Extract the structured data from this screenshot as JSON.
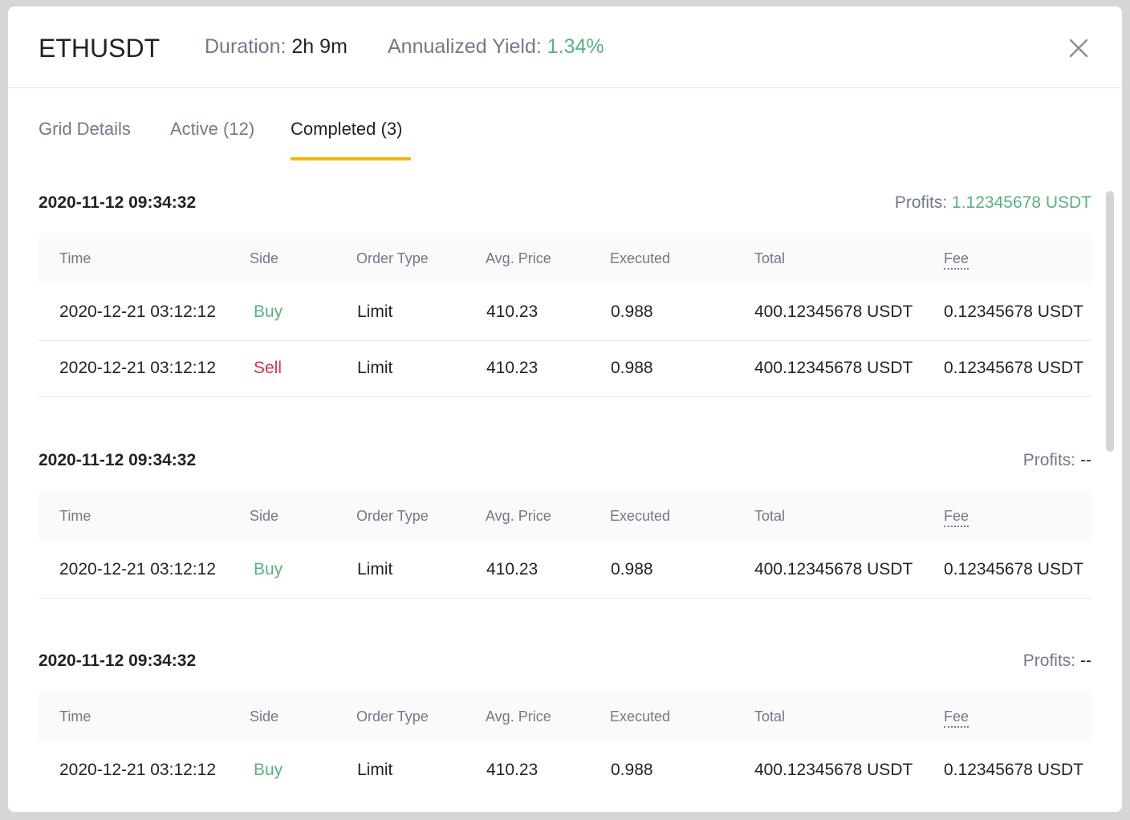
{
  "header": {
    "symbol": "ETHUSDT",
    "duration_label": "Duration:",
    "duration_value": "2h 9m",
    "yield_label": "Annualized Yield:",
    "yield_value": "1.34%"
  },
  "tabs": [
    {
      "label": "Grid Details"
    },
    {
      "label": "Active (12)"
    },
    {
      "label": "Completed (3)"
    }
  ],
  "columns": [
    "Time",
    "Side",
    "Order Type",
    "Avg. Price",
    "Executed",
    "Total",
    "Fee"
  ],
  "groups": [
    {
      "date": "2020-11-12 09:34:32",
      "profits_label": "Profits:",
      "profits_value": "1.12345678 USDT",
      "rows": [
        {
          "time": "2020-12-21 03:12:12",
          "side": "Buy",
          "order_type": "Limit",
          "avg_price": "410.23",
          "executed": "0.988",
          "total": "400.12345678 USDT",
          "fee": "0.12345678 USDT"
        },
        {
          "time": "2020-12-21 03:12:12",
          "side": "Sell",
          "order_type": "Limit",
          "avg_price": "410.23",
          "executed": "0.988",
          "total": "400.12345678 USDT",
          "fee": "0.12345678 USDT"
        }
      ]
    },
    {
      "date": "2020-11-12 09:34:32",
      "profits_label": "Profits:",
      "profits_value": "--",
      "rows": [
        {
          "time": "2020-12-21 03:12:12",
          "side": "Buy",
          "order_type": "Limit",
          "avg_price": "410.23",
          "executed": "0.988",
          "total": "400.12345678 USDT",
          "fee": "0.12345678 USDT"
        }
      ]
    },
    {
      "date": "2020-11-12 09:34:32",
      "profits_label": "Profits:",
      "profits_value": "--",
      "rows": [
        {
          "time": "2020-12-21 03:12:12",
          "side": "Buy",
          "order_type": "Limit",
          "avg_price": "410.23",
          "executed": "0.988",
          "total": "400.12345678 USDT",
          "fee": "0.12345678 USDT"
        }
      ]
    }
  ],
  "icons": {
    "close": "close-icon"
  },
  "colors": {
    "accent": "#f0b90b",
    "positive": "#58b27d",
    "negative": "#d9304e"
  }
}
